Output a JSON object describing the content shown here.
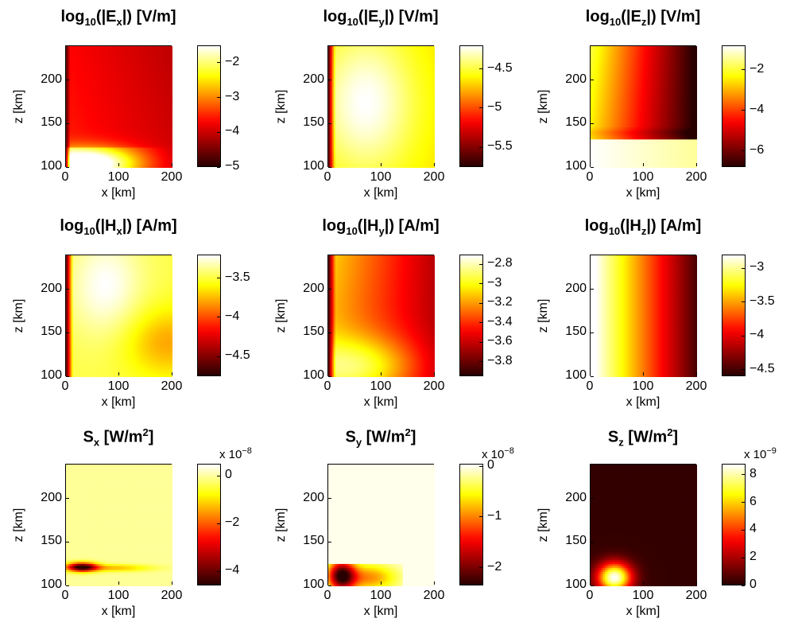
{
  "colorbar_cmap": "hot",
  "chart_data": [
    {
      "type": "heatmap",
      "title_base": "log",
      "title_sub": "10",
      "title_mid": "(|E",
      "title_comp": "x",
      "title_end": "|) [V/m]",
      "xlabel": "x [km]",
      "ylabel": "z [km]",
      "xlim": [
        0,
        200
      ],
      "ylim": [
        100,
        240
      ],
      "xticks": [
        "0",
        "100",
        "200"
      ],
      "yticks": [
        "100",
        "150",
        "200"
      ],
      "colorbar": {
        "range": [
          -5.0,
          -1.5
        ],
        "ticks": [
          "-2",
          "-3",
          "-4",
          "-5"
        ],
        "tick_values": [
          -2,
          -3,
          -4,
          -5
        ],
        "exponent": ""
      },
      "field": "Ex"
    },
    {
      "type": "heatmap",
      "title_base": "log",
      "title_sub": "10",
      "title_mid": "(|E",
      "title_comp": "y",
      "title_end": "|) [V/m]",
      "xlabel": "x [km]",
      "ylabel": "z [km]",
      "xlim": [
        0,
        200
      ],
      "ylim": [
        100,
        240
      ],
      "xticks": [
        "0",
        "100",
        "200"
      ],
      "yticks": [
        "100",
        "150",
        "200"
      ],
      "colorbar": {
        "range": [
          -5.75,
          -4.2
        ],
        "ticks": [
          "-4.5",
          "-5",
          "-5.5"
        ],
        "tick_values": [
          -4.5,
          -5,
          -5.5
        ],
        "exponent": ""
      },
      "field": "Ey"
    },
    {
      "type": "heatmap",
      "title_base": "log",
      "title_sub": "10",
      "title_mid": "(|E",
      "title_comp": "z",
      "title_end": "|) [V/m]",
      "xlabel": "x [km]",
      "ylabel": "z [km]",
      "xlim": [
        0,
        200
      ],
      "ylim": [
        100,
        240
      ],
      "xticks": [
        "0",
        "100",
        "200"
      ],
      "yticks": [
        "100",
        "150",
        "200"
      ],
      "colorbar": {
        "range": [
          -6.8,
          -0.8
        ],
        "ticks": [
          "-2",
          "-4",
          "-6"
        ],
        "tick_values": [
          -2,
          -4,
          -6
        ],
        "exponent": ""
      },
      "field": "Ez"
    },
    {
      "type": "heatmap",
      "title_base": "log",
      "title_sub": "10",
      "title_mid": "(|H",
      "title_comp": "x",
      "title_end": "|) [A/m]",
      "xlabel": "x [km]",
      "ylabel": "z [km]",
      "xlim": [
        0,
        200
      ],
      "ylim": [
        100,
        240
      ],
      "xticks": [
        "0",
        "100",
        "200"
      ],
      "yticks": [
        "100",
        "150",
        "200"
      ],
      "colorbar": {
        "range": [
          -4.75,
          -3.2
        ],
        "ticks": [
          "-3.5",
          "-4",
          "-4.5"
        ],
        "tick_values": [
          -3.5,
          -4,
          -4.5
        ],
        "exponent": ""
      },
      "field": "Hx"
    },
    {
      "type": "heatmap",
      "title_base": "log",
      "title_sub": "10",
      "title_mid": "(|H",
      "title_comp": "y",
      "title_end": "|) [A/m]",
      "xlabel": "x [km]",
      "ylabel": "z [km]",
      "xlim": [
        0,
        200
      ],
      "ylim": [
        100,
        240
      ],
      "xticks": [
        "0",
        "100",
        "200"
      ],
      "yticks": [
        "100",
        "150",
        "200"
      ],
      "colorbar": {
        "range": [
          -3.95,
          -2.7
        ],
        "ticks": [
          "-2.8",
          "-3",
          "-3.2",
          "-3.4",
          "-3.6",
          "-3.8"
        ],
        "tick_values": [
          -2.8,
          -3,
          -3.2,
          -3.4,
          -3.6,
          -3.8
        ],
        "exponent": ""
      },
      "field": "Hy"
    },
    {
      "type": "heatmap",
      "title_base": "log",
      "title_sub": "10",
      "title_mid": "(|H",
      "title_comp": "z",
      "title_end": "|) [A/m]",
      "xlabel": "x [km]",
      "ylabel": "z [km]",
      "xlim": [
        0,
        200
      ],
      "ylim": [
        100,
        240
      ],
      "xticks": [
        "0",
        "100",
        "200"
      ],
      "yticks": [
        "100",
        "150",
        "200"
      ],
      "colorbar": {
        "range": [
          -4.6,
          -2.8
        ],
        "ticks": [
          "-3",
          "-3.5",
          "-4",
          "-4.5"
        ],
        "tick_values": [
          -3,
          -3.5,
          -4,
          -4.5
        ],
        "exponent": ""
      },
      "field": "Hz"
    },
    {
      "type": "heatmap",
      "title_base": "S",
      "title_sub": "x",
      "title_mid": " [W/m",
      "title_comp": "2",
      "title_end": "]",
      "xlabel": "x [km]",
      "ylabel": "z [km]",
      "xlim": [
        0,
        200
      ],
      "ylim": [
        100,
        240
      ],
      "xticks": [
        "0",
        "100",
        "200"
      ],
      "yticks": [
        "100",
        "150",
        "200"
      ],
      "colorbar": {
        "range": [
          -4.6,
          0.5
        ],
        "ticks": [
          "0",
          "-2",
          "-4"
        ],
        "tick_values": [
          0,
          -2,
          -4
        ],
        "exponent": "-8"
      },
      "field": "Sx"
    },
    {
      "type": "heatmap",
      "title_base": "S",
      "title_sub": "y",
      "title_mid": " [W/m",
      "title_comp": "2",
      "title_end": "]",
      "xlabel": "x [km]",
      "ylabel": "z [km]",
      "xlim": [
        0,
        200
      ],
      "ylim": [
        100,
        240
      ],
      "xticks": [
        "0",
        "100",
        "200"
      ],
      "yticks": [
        "100",
        "150",
        "200"
      ],
      "colorbar": {
        "range": [
          -2.35,
          0.05
        ],
        "ticks": [
          "0",
          "-1",
          "-2"
        ],
        "tick_values": [
          0,
          -1,
          -2
        ],
        "exponent": "-8"
      },
      "field": "Sy"
    },
    {
      "type": "heatmap",
      "title_base": "S",
      "title_sub": "z",
      "title_mid": " [W/m",
      "title_comp": "2",
      "title_end": "]",
      "xlabel": "x [km]",
      "ylabel": "z [km]",
      "xlim": [
        0,
        200
      ],
      "ylim": [
        100,
        240
      ],
      "xticks": [
        "0",
        "100",
        "200"
      ],
      "yticks": [
        "100",
        "150",
        "200"
      ],
      "colorbar": {
        "range": [
          0,
          8.8
        ],
        "ticks": [
          "8",
          "6",
          "4",
          "2",
          "0"
        ],
        "tick_values": [
          8,
          6,
          4,
          2,
          0
        ],
        "exponent": "-9"
      },
      "field": "Sz"
    }
  ]
}
